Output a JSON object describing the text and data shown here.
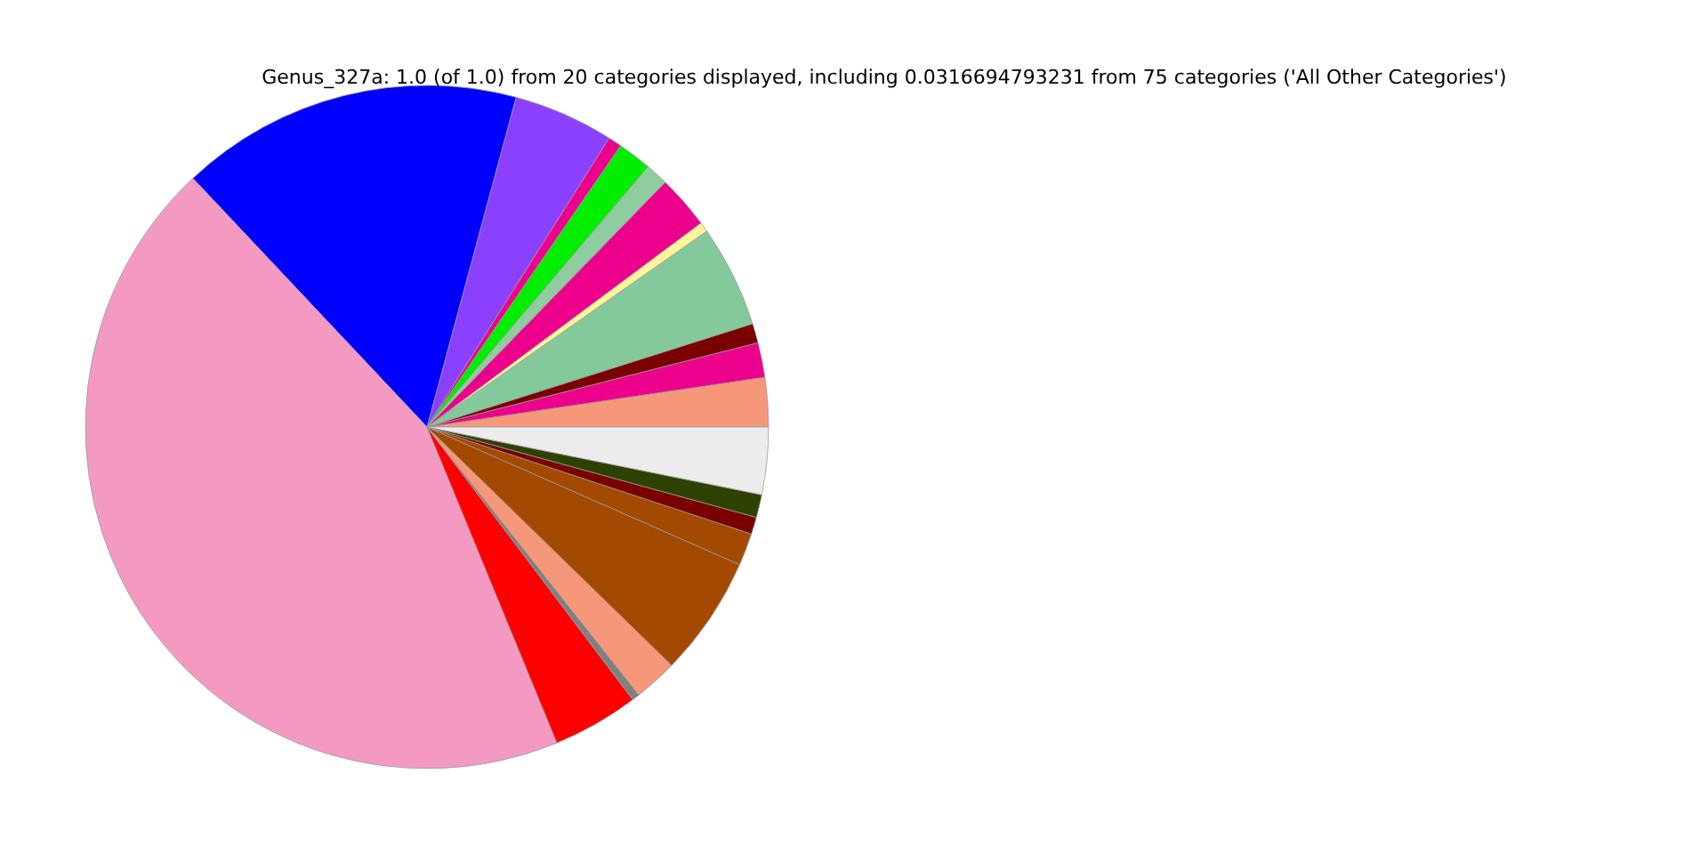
{
  "chart_data": {
    "type": "pie",
    "title": "Genus_327a: 1.0 (of 1.0) from 20 categories displayed, including 0.0316694793231 from 75 categories ('All Other Categories')",
    "categories": [
      null,
      null,
      null,
      null,
      null,
      null,
      null,
      null,
      null,
      null,
      null,
      null,
      null,
      null,
      null,
      null,
      null,
      null,
      null,
      null
    ],
    "values": [
      2.33,
      1.64,
      0.92,
      4.83,
      0.47,
      2.53,
      1.08,
      1.61,
      0.64,
      4.75,
      16.22,
      44.19,
      4.08,
      0.36,
      2.06,
      5.69,
      1.53,
      0.81,
      1.08,
      3.18
    ],
    "colors": [
      "#f7977a",
      "#ec008c",
      "#7a0000",
      "#84c99c",
      "#fff599",
      "#ec008c",
      "#8fcca0",
      "#00ee00",
      "#ec008c",
      "#8c40ff",
      "#0000ff",
      "#f49ac2",
      "#ff0000",
      "#808080",
      "#f7977a",
      "#a34a00",
      "#a34a00",
      "#7a0000",
      "#2d4200",
      "#ececec"
    ],
    "legend": false
  }
}
